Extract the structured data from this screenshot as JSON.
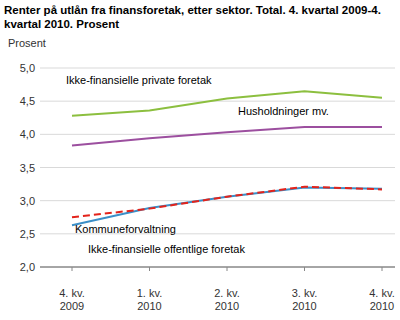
{
  "chart_data": {
    "type": "line",
    "title": "Renter på utlån fra finansforetak, etter sektor. Total. 4. kvartal 2009-4. kvartal 2010. Prosent",
    "ylabel": "Prosent",
    "categories": [
      "4. kv. 2009",
      "1. kv. 2010",
      "2. kv. 2010",
      "3. kv. 2010",
      "4. kv. 2010"
    ],
    "series": [
      {
        "name": "Ikke-finansielle private foretak",
        "color": "#8cbf3f",
        "line_style": "solid",
        "values": [
          4.28,
          4.36,
          4.54,
          4.65,
          4.55
        ]
      },
      {
        "name": "Husholdninger mv.",
        "color": "#9c4f9f",
        "line_style": "solid",
        "values": [
          3.83,
          3.94,
          4.03,
          4.11,
          4.11
        ]
      },
      {
        "name": "Ikke-finansielle offentlige foretak",
        "color": "#3b8fc8",
        "line_style": "solid",
        "values": [
          2.63,
          2.89,
          3.06,
          3.2,
          3.18
        ]
      },
      {
        "name": "Kommuneforvaltning",
        "color": "#e3231b",
        "line_style": "dashed",
        "values": [
          2.75,
          2.88,
          3.06,
          3.21,
          3.17
        ]
      }
    ],
    "ylim": [
      2,
      5
    ],
    "yticks": [
      {
        "value": 2,
        "label": "2,0"
      },
      {
        "value": 2.5,
        "label": "2,5"
      },
      {
        "value": 3,
        "label": "3,0"
      },
      {
        "value": 3.5,
        "label": "3,5"
      },
      {
        "value": 4,
        "label": "4,0"
      },
      {
        "value": 4.5,
        "label": "4,5"
      },
      {
        "value": 5,
        "label": "5,0"
      }
    ],
    "grid": true
  }
}
